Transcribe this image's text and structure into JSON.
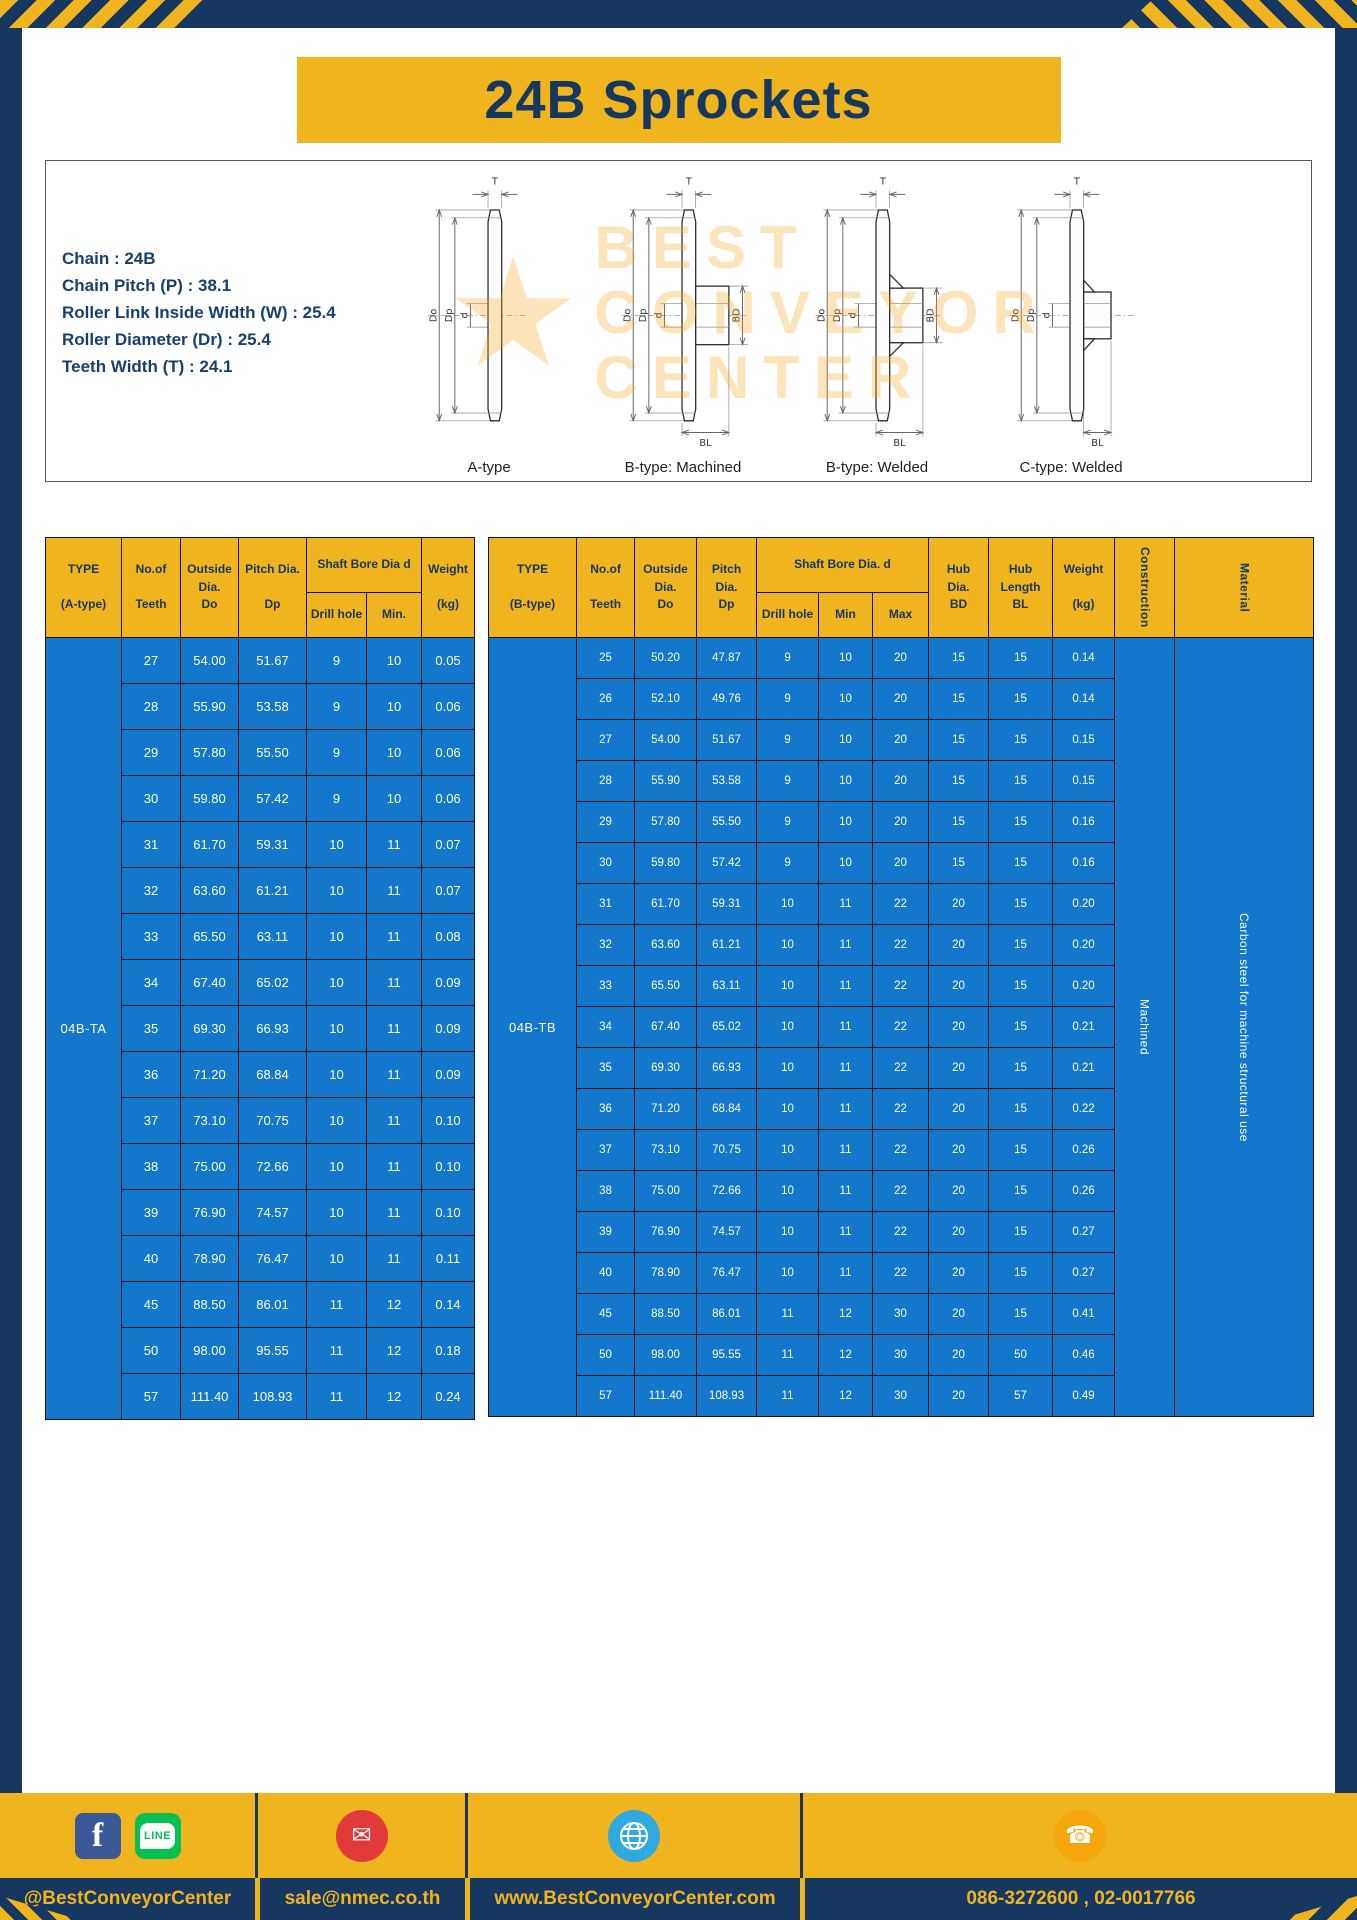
{
  "page": {
    "title": "24B Sprockets"
  },
  "specs": {
    "lines": [
      "Chain  :  24B",
      "Chain Pitch (P)  :  38.1",
      "Roller Link Inside Width (W)  :  25.4",
      "Roller Diameter (Dr)  :  25.4",
      "Teeth Width (T)  :  24.1"
    ]
  },
  "diagram": {
    "watermark": {
      "line1": "BEST",
      "line2": "CONVEYOR",
      "line3": "CENTER"
    },
    "figures": [
      {
        "label": "A-type",
        "shape": "a",
        "dims": {
          "t": "T",
          "do": "Do",
          "dp": "Dp",
          "d": "d"
        }
      },
      {
        "label": "B-type: Machined",
        "shape": "bm",
        "dims": {
          "t": "T",
          "do": "Do",
          "dp": "Dp",
          "d": "d",
          "bd": "BD",
          "bl": "BL"
        }
      },
      {
        "label": "B-type: Welded",
        "shape": "bw",
        "dims": {
          "t": "T",
          "do": "Do",
          "dp": "Dp",
          "d": "d",
          "bd": "BD",
          "bl": "BL"
        }
      },
      {
        "label": "C-type: Welded",
        "shape": "cw",
        "dims": {
          "t": "T",
          "do": "Do",
          "dp": "Dp",
          "d": "d",
          "bl": "BL"
        }
      }
    ]
  },
  "table_a": {
    "header": {
      "type": "TYPE\n\n(A-type)",
      "teeth": "No.of\n\nTeeth",
      "outside": "Outside\nDia.\nDo",
      "pitch": "Pitch Dia.\n\nDp",
      "shaft_bore": "Shaft Bore Dia d",
      "drill": "Drill hole",
      "min": "Min.",
      "weight": "Weight\n\n(kg)"
    },
    "type_label": "04B-TA",
    "rows": [
      [
        "27",
        "54.00",
        "51.67",
        "9",
        "10",
        "0.05"
      ],
      [
        "28",
        "55.90",
        "53.58",
        "9",
        "10",
        "0.06"
      ],
      [
        "29",
        "57.80",
        "55.50",
        "9",
        "10",
        "0.06"
      ],
      [
        "30",
        "59.80",
        "57.42",
        "9",
        "10",
        "0.06"
      ],
      [
        "31",
        "61.70",
        "59.31",
        "10",
        "11",
        "0.07"
      ],
      [
        "32",
        "63.60",
        "61.21",
        "10",
        "11",
        "0.07"
      ],
      [
        "33",
        "65.50",
        "63.11",
        "10",
        "11",
        "0.08"
      ],
      [
        "34",
        "67.40",
        "65.02",
        "10",
        "11",
        "0.09"
      ],
      [
        "35",
        "69.30",
        "66.93",
        "10",
        "11",
        "0.09"
      ],
      [
        "36",
        "71.20",
        "68.84",
        "10",
        "11",
        "0.09"
      ],
      [
        "37",
        "73.10",
        "70.75",
        "10",
        "11",
        "0.10"
      ],
      [
        "38",
        "75.00",
        "72.66",
        "10",
        "11",
        "0.10"
      ],
      [
        "39",
        "76.90",
        "74.57",
        "10",
        "11",
        "0.10"
      ],
      [
        "40",
        "78.90",
        "76.47",
        "10",
        "11",
        "0.11"
      ],
      [
        "45",
        "88.50",
        "86.01",
        "11",
        "12",
        "0.14"
      ],
      [
        "50",
        "98.00",
        "95.55",
        "11",
        "12",
        "0.18"
      ],
      [
        "57",
        "111.40",
        "108.93",
        "11",
        "12",
        "0.24"
      ]
    ]
  },
  "table_b": {
    "header": {
      "type": "TYPE\n\n(B-type)",
      "teeth": "No.of\n\nTeeth",
      "outside": "Outside\nDia.\nDo",
      "pitch": "Pitch\nDia.\nDp",
      "shaft_bore": "Shaft Bore Dia.  d",
      "drill": "Drill hole",
      "min": "Min",
      "max": "Max",
      "hub_dia": "Hub\nDia.\nBD",
      "hub_len": "Hub\nLength\nBL",
      "weight": "Weight\n\n(kg)",
      "construction": "Construction",
      "material": "Material"
    },
    "type_label": "04B-TB",
    "construction": "Machined",
    "material": "Carbon steel for machine structural use",
    "rows": [
      [
        "25",
        "50.20",
        "47.87",
        "9",
        "10",
        "20",
        "15",
        "15",
        "0.14"
      ],
      [
        "26",
        "52.10",
        "49.76",
        "9",
        "10",
        "20",
        "15",
        "15",
        "0.14"
      ],
      [
        "27",
        "54.00",
        "51.67",
        "9",
        "10",
        "20",
        "15",
        "15",
        "0.15"
      ],
      [
        "28",
        "55.90",
        "53.58",
        "9",
        "10",
        "20",
        "15",
        "15",
        "0.15"
      ],
      [
        "29",
        "57.80",
        "55.50",
        "9",
        "10",
        "20",
        "15",
        "15",
        "0.16"
      ],
      [
        "30",
        "59.80",
        "57.42",
        "9",
        "10",
        "20",
        "15",
        "15",
        "0.16"
      ],
      [
        "31",
        "61.70",
        "59.31",
        "10",
        "11",
        "22",
        "20",
        "15",
        "0.20"
      ],
      [
        "32",
        "63.60",
        "61.21",
        "10",
        "11",
        "22",
        "20",
        "15",
        "0.20"
      ],
      [
        "33",
        "65.50",
        "63.11",
        "10",
        "11",
        "22",
        "20",
        "15",
        "0.20"
      ],
      [
        "34",
        "67.40",
        "65.02",
        "10",
        "11",
        "22",
        "20",
        "15",
        "0.21"
      ],
      [
        "35",
        "69.30",
        "66.93",
        "10",
        "11",
        "22",
        "20",
        "15",
        "0.21"
      ],
      [
        "36",
        "71.20",
        "68.84",
        "10",
        "11",
        "22",
        "20",
        "15",
        "0.22"
      ],
      [
        "37",
        "73.10",
        "70.75",
        "10",
        "11",
        "22",
        "20",
        "15",
        "0.26"
      ],
      [
        "38",
        "75.00",
        "72.66",
        "10",
        "11",
        "22",
        "20",
        "15",
        "0.26"
      ],
      [
        "39",
        "76.90",
        "74.57",
        "10",
        "11",
        "22",
        "20",
        "15",
        "0.27"
      ],
      [
        "40",
        "78.90",
        "76.47",
        "10",
        "11",
        "22",
        "20",
        "15",
        "0.27"
      ],
      [
        "45",
        "88.50",
        "86.01",
        "11",
        "12",
        "30",
        "20",
        "15",
        "0.41"
      ],
      [
        "50",
        "98.00",
        "95.55",
        "11",
        "12",
        "30",
        "20",
        "50",
        "0.46"
      ],
      [
        "57",
        "111.40",
        "108.93",
        "11",
        "12",
        "30",
        "20",
        "57",
        "0.49"
      ]
    ]
  },
  "footer": {
    "social_text": "@BestConveyorCenter",
    "email": "sale@nmec.co.th",
    "website": "www.BestConveyorCenter.com",
    "phone": "086-3272600 , 02-0017766",
    "icons": {
      "facebook": "f",
      "line": "LINE",
      "mail": "✉",
      "phone": "☎"
    }
  },
  "colors": {
    "navy": "#16375f",
    "yellow": "#f0b41e",
    "cell_blue": "#1377cb"
  }
}
